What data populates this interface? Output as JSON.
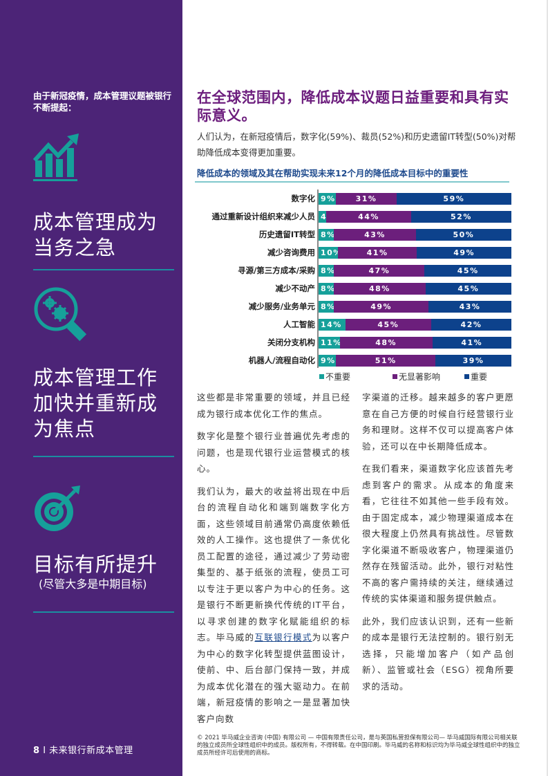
{
  "sidebar": {
    "background": "#4c2477",
    "accent": "#16a09a",
    "intro": "由于新冠疫情，成本管理议题被银行不断提起：",
    "items": [
      {
        "icon": "growth-chart-icon",
        "heading": "成本管理成为当务之急",
        "sub": ""
      },
      {
        "icon": "magnifier-gears-icon",
        "heading": "成本管理工作加快并重新成为焦点",
        "sub": ""
      },
      {
        "icon": "target-arrow-icon",
        "heading": "目标有所提升",
        "sub": "(尽管大多是中期目标)"
      }
    ],
    "footer": {
      "page_number": "8",
      "separator": "I",
      "title": "未来银行新成本管理"
    }
  },
  "main": {
    "title": "在全球范围内，降低成本议题日益重要和具有实际意义。",
    "lead": "人们认为，在新冠疫情后，数字化(59%)、裁员(52%)和历史遗留IT转型(50%)对帮助降低成本变得更加重要。",
    "chart_title": "降低成本的领域及其在帮助实现未来12个月的降低成本目标中的重要性",
    "col1": [
      {
        "text": "这些都是非常重要的领域，并且已经成为银行成本优化工作的焦点。"
      },
      {
        "text": "数字化是整个银行业普遍优先考虑的问题，也是现代银行业运营模式的核心。"
      },
      {
        "before": "我们认为，最大的收益将出现在中后台的流程自动化和端到端数字化方面，这些领域目前通常仍高度依赖低效的人工操作。这也提供了一条优化员工配置的途径，通过减少了劳动密集型的、基于纸张的流程，使员工可以专注于更以客户为中心的任务。这是银行不断更新换代传统的IT平台，以寻求创建的数字化赋能组织的标志。毕马威的",
        "link": "互联银行模式",
        "after": "为以客户为中心的数字化转型提供蓝图设计，使前、中、后台部门保持一致，并成为成本优化潜在的强大驱动力。在前端，新冠疫情的影响之一是显著加快客户向数"
      }
    ],
    "col2": [
      {
        "text": "字渠道的迁移。越来越多的客户更愿意在自己方便的时候自行经营银行业务和理财。这样不仅可以提高客户体验，还可以在中长期降低成本。"
      },
      {
        "text": "在我们看来，渠道数字化应该首先考虑到客户的需求。从成本的角度来看，它往往不如其他一些手段有效。由于固定成本，减少物理渠道成本在很大程度上仍然具有挑战性。尽管数字化渠道不断吸收客户，物理渠道仍然存在残留活动。此外，银行对粘性不高的客户需持续的关注，继续通过传统的实体渠道和服务提供触点。"
      },
      {
        "text": "此外，我们应该认识到，还有一些新的成本是银行无法控制的。银行别无选择，只能增加客户（如产品创新）、监管或社会（ESG）视角所要求的活动。"
      }
    ],
    "copyright": "© 2021 毕马威企业咨询 (中国) 有限公司 — 中国有限责任公司，是与英国私营担保有限公司— 毕马威国际有限公司相关联的独立成员所全球性组织中的成员。版权所有，不得转载。在中国印刷。毕马威的名称和标识均为毕马威全球性组织中的独立成员所经许可后使用的商标。"
  },
  "chart_data": {
    "type": "bar",
    "orientation": "horizontal",
    "stacked": true,
    "title": "降低成本的领域及其在帮助实现未来12个月的降低成本目标中的重要性",
    "xlabel": "",
    "ylabel": "",
    "xlim": [
      0,
      100
    ],
    "legend_position": "bottom",
    "categories": [
      "数字化",
      "通过重新设计组织来减少人员",
      "历史遗留IT转型",
      "减少咨询费用",
      "寻源/第三方成本/采购",
      "减少不动产",
      "减少服务/业务单元",
      "人工智能",
      "关闭分支机构",
      "机器人/流程自动化"
    ],
    "series": [
      {
        "name": "不重要",
        "color": "#16a09a",
        "values": [
          9,
          4,
          8,
          10,
          8,
          8,
          8,
          14,
          11,
          9
        ]
      },
      {
        "name": "无显著影响",
        "color": "#6c1f7c",
        "values": [
          31,
          44,
          43,
          41,
          47,
          48,
          49,
          45,
          48,
          51
        ]
      },
      {
        "name": "重要",
        "color": "#0d428c",
        "values": [
          59,
          52,
          50,
          49,
          45,
          45,
          43,
          42,
          41,
          39
        ]
      }
    ]
  }
}
